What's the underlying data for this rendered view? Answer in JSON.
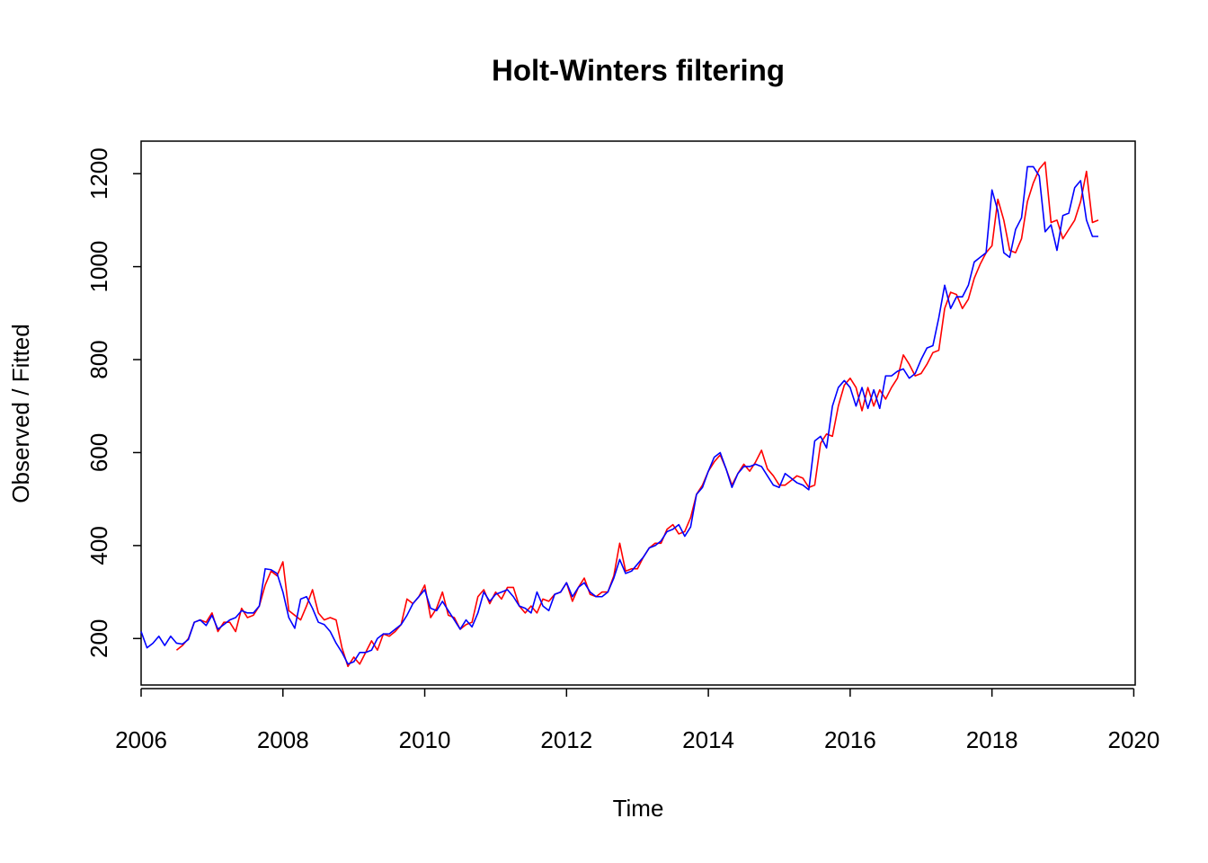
{
  "chart_data": {
    "type": "line",
    "title": "Holt-Winters filtering",
    "x_label": "Time",
    "y_label": "Observed / Fitted",
    "xlim": [
      2006,
      2020.02
    ],
    "ylim": [
      100,
      1270
    ],
    "xticks": [
      2006,
      2008,
      2010,
      2012,
      2014,
      2016,
      2018,
      2020
    ],
    "yticks": [
      200,
      400,
      600,
      800,
      1000,
      1200
    ],
    "x": [
      2006,
      2006.083,
      2006.167,
      2006.25,
      2006.333,
      2006.417,
      2006.5,
      2006.583,
      2006.667,
      2006.75,
      2006.833,
      2006.917,
      2007,
      2007.083,
      2007.167,
      2007.25,
      2007.333,
      2007.417,
      2007.5,
      2007.583,
      2007.667,
      2007.75,
      2007.833,
      2007.917,
      2008,
      2008.083,
      2008.167,
      2008.25,
      2008.333,
      2008.417,
      2008.5,
      2008.583,
      2008.667,
      2008.75,
      2008.833,
      2008.917,
      2009,
      2009.083,
      2009.167,
      2009.25,
      2009.333,
      2009.417,
      2009.5,
      2009.583,
      2009.667,
      2009.75,
      2009.833,
      2009.917,
      2010,
      2010.083,
      2010.167,
      2010.25,
      2010.333,
      2010.417,
      2010.5,
      2010.583,
      2010.667,
      2010.75,
      2010.833,
      2010.917,
      2011,
      2011.083,
      2011.167,
      2011.25,
      2011.333,
      2011.417,
      2011.5,
      2011.583,
      2011.667,
      2011.75,
      2011.833,
      2011.917,
      2012,
      2012.083,
      2012.167,
      2012.25,
      2012.333,
      2012.417,
      2012.5,
      2012.583,
      2012.667,
      2012.75,
      2012.833,
      2012.917,
      2013,
      2013.083,
      2013.167,
      2013.25,
      2013.333,
      2013.417,
      2013.5,
      2013.583,
      2013.667,
      2013.75,
      2013.833,
      2013.917,
      2014,
      2014.083,
      2014.167,
      2014.25,
      2014.333,
      2014.417,
      2014.5,
      2014.583,
      2014.667,
      2014.75,
      2014.833,
      2014.917,
      2015,
      2015.083,
      2015.167,
      2015.25,
      2015.333,
      2015.417,
      2015.5,
      2015.583,
      2015.667,
      2015.75,
      2015.833,
      2015.917,
      2016,
      2016.083,
      2016.167,
      2016.25,
      2016.333,
      2016.417,
      2016.5,
      2016.583,
      2016.667,
      2016.75,
      2016.833,
      2016.917,
      2017,
      2017.083,
      2017.167,
      2017.25,
      2017.333,
      2017.417,
      2017.5,
      2017.583,
      2017.667,
      2017.75,
      2017.833,
      2017.917,
      2018,
      2018.083,
      2018.167,
      2018.25,
      2018.333,
      2018.417,
      2018.5,
      2018.583,
      2018.667,
      2018.75,
      2018.833,
      2018.917,
      2019,
      2019.083,
      2019.167,
      2019.25,
      2019.333,
      2019.417,
      2019.5
    ],
    "series": [
      {
        "color": "#ff0000",
        "values": [
          null,
          null,
          null,
          null,
          null,
          null,
          175,
          185,
          200,
          235,
          240,
          235,
          255,
          215,
          235,
          235,
          215,
          265,
          245,
          250,
          270,
          315,
          345,
          335,
          365,
          260,
          250,
          240,
          270,
          305,
          255,
          240,
          245,
          240,
          180,
          140,
          160,
          145,
          170,
          195,
          175,
          210,
          205,
          215,
          230,
          285,
          275,
          290,
          315,
          245,
          265,
          300,
          250,
          245,
          220,
          230,
          235,
          290,
          305,
          275,
          300,
          285,
          310,
          310,
          270,
          255,
          270,
          255,
          285,
          280,
          295,
          300,
          320,
          280,
          310,
          330,
          295,
          290,
          300,
          300,
          335,
          405,
          345,
          350,
          350,
          375,
          395,
          405,
          405,
          435,
          445,
          425,
          430,
          460,
          510,
          530,
          560,
          580,
          595,
          565,
          530,
          555,
          575,
          560,
          580,
          605,
          565,
          550,
          530,
          530,
          540,
          550,
          545,
          525,
          530,
          620,
          640,
          635,
          700,
          745,
          760,
          740,
          690,
          740,
          700,
          735,
          715,
          740,
          760,
          810,
          790,
          765,
          770,
          790,
          815,
          820,
          910,
          945,
          940,
          910,
          930,
          975,
          1005,
          1030,
          1045,
          1145,
          1100,
          1035,
          1030,
          1060,
          1140,
          1180,
          1210,
          1225,
          1095,
          1100,
          1060,
          1080,
          1100,
          1140,
          1205,
          1095,
          1100
        ]
      },
      {
        "color": "#0000ff",
        "values": [
          215,
          180,
          190,
          205,
          185,
          205,
          190,
          188,
          198,
          235,
          240,
          228,
          250,
          220,
          230,
          240,
          245,
          260,
          255,
          255,
          270,
          350,
          348,
          340,
          300,
          245,
          222,
          285,
          290,
          265,
          235,
          230,
          215,
          190,
          170,
          145,
          150,
          170,
          170,
          175,
          200,
          210,
          210,
          220,
          230,
          250,
          275,
          290,
          305,
          265,
          260,
          280,
          260,
          240,
          220,
          240,
          225,
          255,
          300,
          280,
          295,
          300,
          305,
          290,
          270,
          265,
          255,
          300,
          270,
          260,
          295,
          300,
          320,
          290,
          310,
          320,
          300,
          290,
          290,
          300,
          330,
          370,
          340,
          345,
          360,
          375,
          395,
          400,
          410,
          430,
          435,
          445,
          420,
          440,
          510,
          525,
          560,
          590,
          600,
          565,
          525,
          555,
          570,
          570,
          575,
          570,
          550,
          530,
          525,
          555,
          545,
          535,
          530,
          520,
          625,
          635,
          610,
          700,
          740,
          755,
          740,
          700,
          740,
          695,
          735,
          695,
          765,
          765,
          775,
          780,
          760,
          770,
          800,
          825,
          830,
          890,
          960,
          910,
          935,
          935,
          960,
          1010,
          1020,
          1030,
          1165,
          1120,
          1030,
          1020,
          1080,
          1105,
          1215,
          1215,
          1195,
          1075,
          1090,
          1035,
          1110,
          1115,
          1170,
          1185,
          1100,
          1065,
          1065
        ]
      }
    ]
  }
}
